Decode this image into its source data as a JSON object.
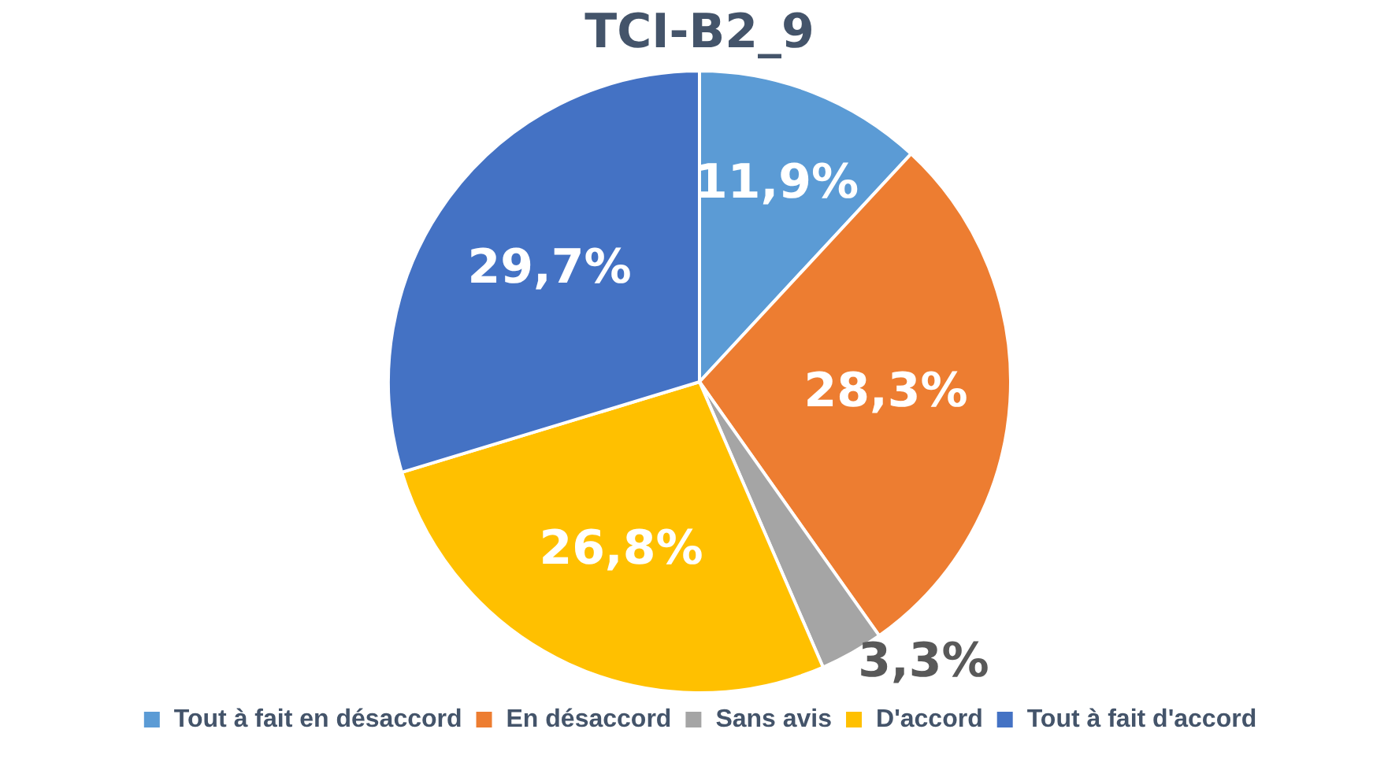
{
  "chart_data": {
    "type": "pie",
    "title": "TCI-B2_9",
    "categories": [
      "Tout à fait en désaccord",
      "En désaccord",
      "Sans avis",
      "D'accord",
      "Tout à fait d'accord"
    ],
    "values": [
      11.9,
      28.3,
      3.3,
      26.8,
      29.7
    ],
    "colors": [
      "#5b9bd5",
      "#ed7d31",
      "#a5a5a5",
      "#ffc000",
      "#4472c4"
    ],
    "value_labels": [
      "11,9%",
      "28,3%",
      "3,3%",
      "26,8%",
      "29,7%"
    ],
    "legend": "bottom"
  }
}
